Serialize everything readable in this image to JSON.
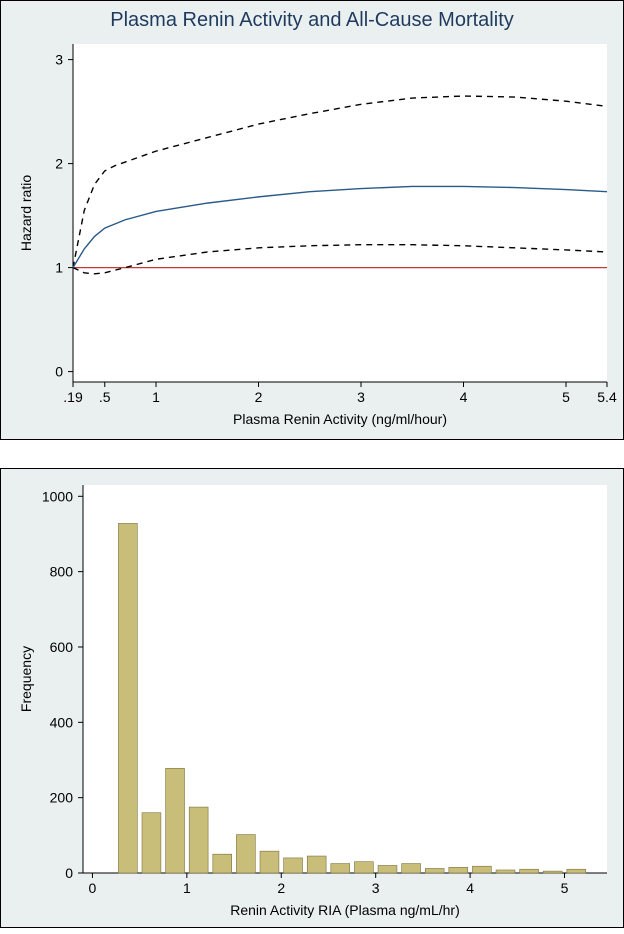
{
  "figure_width": 624,
  "figure_height": 934,
  "top_panel": {
    "type": "line",
    "title": "Plasma Renin Activity and All-Cause Mortality",
    "title_color": "#1f3a5f",
    "title_fontsize": 20,
    "background_color": "#eaf0f0",
    "plot_background": "#ffffff",
    "border_color": "#000000",
    "xlabel": "Plasma Renin Activity (ng/ml/hour)",
    "ylabel": "Hazard ratio",
    "label_fontsize": 14,
    "tick_fontsize": 14,
    "x_ticks": [
      0.19,
      0.5,
      1,
      2,
      3,
      4,
      5,
      5.4
    ],
    "x_ticklabels": [
      ".19",
      ".5",
      "1",
      "2",
      "3",
      "4",
      "5",
      "5.4"
    ],
    "xlim": [
      0.19,
      5.4
    ],
    "y_ticks": [
      0,
      1,
      2,
      3
    ],
    "ylim": [
      -0.1,
      3.15
    ],
    "reference_line": {
      "y": 1,
      "color": "#c23b3b",
      "width": 1.2
    },
    "center_line": {
      "color": "#2a5a8a",
      "width": 1.4,
      "points": [
        [
          0.19,
          1.0
        ],
        [
          0.3,
          1.18
        ],
        [
          0.4,
          1.3
        ],
        [
          0.5,
          1.38
        ],
        [
          0.7,
          1.46
        ],
        [
          1.0,
          1.54
        ],
        [
          1.5,
          1.62
        ],
        [
          2.0,
          1.68
        ],
        [
          2.5,
          1.73
        ],
        [
          3.0,
          1.76
        ],
        [
          3.5,
          1.78
        ],
        [
          4.0,
          1.78
        ],
        [
          4.5,
          1.77
        ],
        [
          5.0,
          1.75
        ],
        [
          5.4,
          1.73
        ]
      ]
    },
    "upper_ci": {
      "color": "#000000",
      "width": 1.4,
      "dash": "6,5",
      "points": [
        [
          0.19,
          1.0
        ],
        [
          0.3,
          1.55
        ],
        [
          0.4,
          1.8
        ],
        [
          0.5,
          1.93
        ],
        [
          0.6,
          1.98
        ],
        [
          0.8,
          2.05
        ],
        [
          1.0,
          2.12
        ],
        [
          1.5,
          2.25
        ],
        [
          2.0,
          2.38
        ],
        [
          2.5,
          2.48
        ],
        [
          3.0,
          2.57
        ],
        [
          3.5,
          2.63
        ],
        [
          4.0,
          2.65
        ],
        [
          4.5,
          2.64
        ],
        [
          5.0,
          2.6
        ],
        [
          5.4,
          2.55
        ]
      ]
    },
    "lower_ci": {
      "color": "#000000",
      "width": 1.4,
      "dash": "6,5",
      "points": [
        [
          0.19,
          1.0
        ],
        [
          0.3,
          0.95
        ],
        [
          0.4,
          0.94
        ],
        [
          0.5,
          0.95
        ],
        [
          0.7,
          1.0
        ],
        [
          1.0,
          1.08
        ],
        [
          1.5,
          1.15
        ],
        [
          2.0,
          1.19
        ],
        [
          2.5,
          1.21
        ],
        [
          3.0,
          1.22
        ],
        [
          3.5,
          1.22
        ],
        [
          4.0,
          1.21
        ],
        [
          4.5,
          1.19
        ],
        [
          5.0,
          1.17
        ],
        [
          5.4,
          1.15
        ]
      ]
    }
  },
  "bottom_panel": {
    "type": "histogram",
    "background_color": "#eaf0f0",
    "plot_background": "#ffffff",
    "border_color": "#000000",
    "xlabel": "Renin Activity RIA (Plasma ng/mL/hr)",
    "ylabel": "Frequency",
    "label_fontsize": 14,
    "tick_fontsize": 14,
    "x_ticks": [
      0,
      1,
      2,
      3,
      4,
      5
    ],
    "xlim": [
      -0.1,
      5.45
    ],
    "y_ticks": [
      0,
      200,
      400,
      600,
      800,
      1000
    ],
    "ylim": [
      0,
      1030
    ],
    "bar_color": "#c9be79",
    "bar_border": "#7a7140",
    "bin_centers": [
      0.125,
      0.375,
      0.625,
      0.875,
      1.125,
      1.375,
      1.625,
      1.875,
      2.125,
      2.375,
      2.625,
      2.875,
      3.125,
      3.375,
      3.625,
      3.875,
      4.125,
      4.375,
      4.625,
      4.875,
      5.125
    ],
    "bin_width": 0.2,
    "values": [
      0,
      928,
      160,
      278,
      175,
      50,
      102,
      58,
      40,
      45,
      25,
      30,
      20,
      25,
      12,
      15,
      18,
      8,
      10,
      5,
      10
    ]
  }
}
